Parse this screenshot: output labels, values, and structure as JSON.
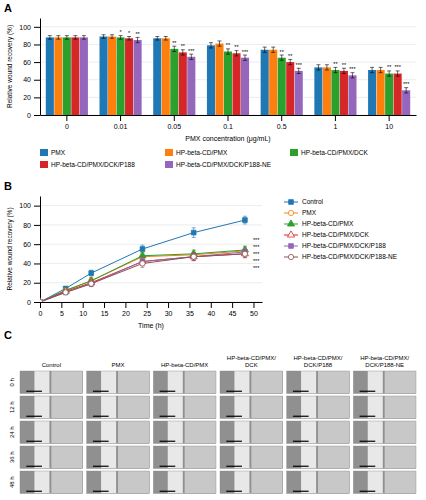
{
  "chart_data": [
    {
      "type": "bar",
      "title": "A",
      "categories": [
        "0",
        "0.01",
        "0.05",
        "0.1",
        "0.5",
        "1",
        "10"
      ],
      "series": [
        {
          "name": "PMX",
          "values": [
            88,
            89,
            87,
            79,
            74,
            54,
            51
          ],
          "errors": [
            2,
            2,
            2,
            3,
            3,
            3,
            3
          ]
        },
        {
          "name": "HP-beta-CD/PMX",
          "values": [
            88,
            89,
            87,
            81,
            74,
            54,
            51
          ],
          "errors": [
            2,
            2,
            2,
            3,
            3,
            3,
            3
          ]
        },
        {
          "name": "HP-beta-CD/PMX/DCK",
          "values": [
            88,
            88,
            75,
            72,
            65,
            51,
            47
          ],
          "errors": [
            2,
            2,
            3,
            3,
            3,
            3,
            3
          ]
        },
        {
          "name": "HP-beta-CD/PMX/DCK/P188",
          "values": [
            88,
            87,
            71,
            70,
            60,
            50,
            47
          ],
          "errors": [
            2,
            2,
            3,
            3,
            3,
            3,
            3
          ]
        },
        {
          "name": "HP-beta-CD/PMX/DCK/P188-NE",
          "values": [
            88,
            85,
            66,
            65,
            50,
            45,
            28
          ],
          "errors": [
            2,
            3,
            3,
            3,
            3,
            3,
            3
          ]
        }
      ],
      "xlabel": "PMX concentration (μg/mL)",
      "ylabel": "Relative wound recovery (%)",
      "ylim": [
        0,
        110
      ],
      "yticks": [
        0,
        20,
        40,
        60,
        80,
        100
      ],
      "grid": true,
      "legend": "bottom",
      "annotations": [
        {
          "category": "0.01",
          "series": "HP-beta-CD/PMX/DCK",
          "text": "*"
        },
        {
          "category": "0.01",
          "series": "HP-beta-CD/PMX/DCK/P188",
          "text": "*"
        },
        {
          "category": "0.01",
          "series": "HP-beta-CD/PMX/DCK/P188-NE",
          "text": "**"
        },
        {
          "category": "0.05",
          "series": "HP-beta-CD/PMX/DCK",
          "text": "**"
        },
        {
          "category": "0.05",
          "series": "HP-beta-CD/PMX/DCK/P188",
          "text": "**"
        },
        {
          "category": "0.05",
          "series": "HP-beta-CD/PMX/DCK/P188-NE",
          "text": "***"
        },
        {
          "category": "0.1",
          "series": "HP-beta-CD/PMX/DCK",
          "text": "**"
        },
        {
          "category": "0.1",
          "series": "HP-beta-CD/PMX/DCK/P188",
          "text": "**"
        },
        {
          "category": "0.1",
          "series": "HP-beta-CD/PMX/DCK/P188-NE",
          "text": "***"
        },
        {
          "category": "0.5",
          "series": "HP-beta-CD/PMX/DCK",
          "text": "**"
        },
        {
          "category": "0.5",
          "series": "HP-beta-CD/PMX/DCK/P188",
          "text": "**"
        },
        {
          "category": "0.5",
          "series": "HP-beta-CD/PMX/DCK/P188-NE",
          "text": "***"
        },
        {
          "category": "1",
          "series": "HP-beta-CD/PMX/DCK",
          "text": "**"
        },
        {
          "category": "1",
          "series": "HP-beta-CD/PMX/DCK/P188",
          "text": "**"
        },
        {
          "category": "1",
          "series": "HP-beta-CD/PMX/DCK/P188-NE",
          "text": "***"
        },
        {
          "category": "10",
          "series": "HP-beta-CD/PMX/DCK",
          "text": "**"
        },
        {
          "category": "10",
          "series": "HP-beta-CD/PMX/DCK/P188",
          "text": "***"
        },
        {
          "category": "10",
          "series": "HP-beta-CD/PMX/DCK/P188-NE",
          "text": "***"
        }
      ]
    },
    {
      "type": "line",
      "title": "B",
      "x": [
        0,
        6,
        12,
        24,
        36,
        48
      ],
      "series": [
        {
          "name": "Control",
          "values": [
            0,
            14,
            30,
            55,
            72,
            85
          ],
          "errors": [
            0,
            2,
            3,
            4,
            5,
            4
          ],
          "marker": "square",
          "line_style": "solid"
        },
        {
          "name": "PMX",
          "values": [
            0,
            12,
            22,
            47,
            49,
            53
          ],
          "errors": [
            0,
            2,
            3,
            4,
            4,
            4
          ],
          "marker": "circle-open",
          "line_style": "solid"
        },
        {
          "name": "HP-beta-CD/PMX",
          "values": [
            0,
            12,
            22,
            48,
            50,
            54
          ],
          "errors": [
            0,
            2,
            3,
            4,
            4,
            4
          ],
          "marker": "triangle",
          "line_style": "solid"
        },
        {
          "name": "HP-beta-CD/PMX/DCK",
          "values": [
            0,
            11,
            20,
            42,
            47,
            50
          ],
          "errors": [
            0,
            2,
            3,
            4,
            4,
            4
          ],
          "marker": "triangle-open",
          "line_style": "solid"
        },
        {
          "name": "HP-beta-CD/PMX/DCK/P188",
          "values": [
            0,
            10,
            19,
            42,
            47,
            52
          ],
          "errors": [
            0,
            2,
            3,
            4,
            4,
            4
          ],
          "marker": "square",
          "line_style": "solid"
        },
        {
          "name": "HP-beta-CD/PMX/DCK/P188-NE",
          "values": [
            0,
            10,
            19,
            40,
            47,
            50
          ],
          "errors": [
            0,
            2,
            3,
            4,
            4,
            4
          ],
          "marker": "circle-open",
          "line_style": "solid"
        }
      ],
      "xlabel": "Time (h)",
      "ylabel": "Relative wound recovery (%)",
      "xlim": [
        0,
        52
      ],
      "xticks": [
        0,
        5,
        10,
        15,
        20,
        25,
        30,
        35,
        40,
        45,
        50
      ],
      "ylim": [
        0,
        110
      ],
      "yticks": [
        0,
        20,
        40,
        60,
        80,
        100
      ],
      "grid": true,
      "legend": "right",
      "annotations": [
        {
          "text": "***"
        },
        {
          "text": "***"
        },
        {
          "text": "***"
        },
        {
          "text": "***"
        },
        {
          "text": "***"
        }
      ]
    },
    {
      "type": "image_grid",
      "title": "C",
      "categories": [
        "Control",
        "PMX",
        "HP-beta-CD/PMX",
        "HP-beta-CD/PMX/\nDCK",
        "HP-beta-CD/PMX/\nDCK/P188",
        "HP-beta-CD/PMX/\nDCK/P188-NE"
      ],
      "row_labels": [
        "0 h",
        "12 h",
        "24 h",
        "36 h",
        "48 h"
      ]
    }
  ]
}
